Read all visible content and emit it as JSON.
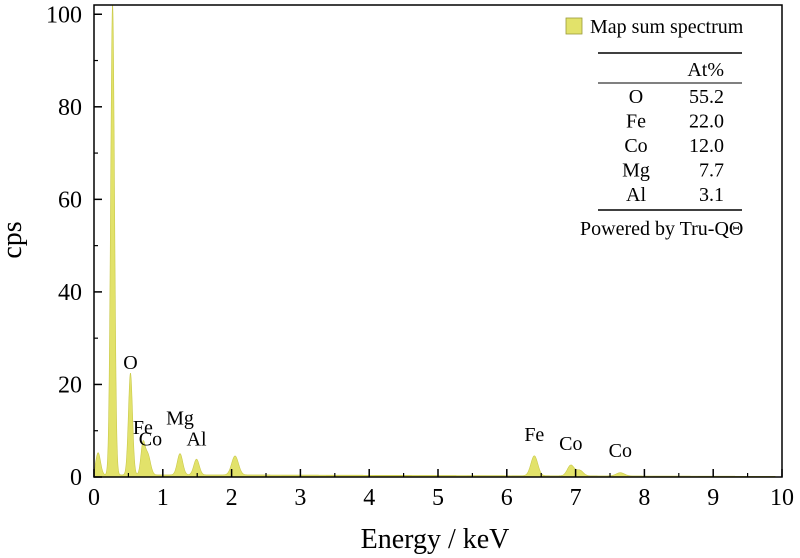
{
  "chart_data": {
    "type": "area",
    "xlabel": "Energy / keV",
    "ylabel": "cps",
    "xlim": [
      0,
      10
    ],
    "ylim": [
      0,
      102
    ],
    "x_ticks": [
      "0",
      "1",
      "2",
      "3",
      "4",
      "5",
      "6",
      "7",
      "8",
      "9",
      "10"
    ],
    "y_ticks": [
      "0",
      "20",
      "40",
      "60",
      "80",
      "100"
    ],
    "series": [
      {
        "name": "Map sum spectrum",
        "color": "#e2e26a",
        "peaks": [
          {
            "x": 0.06,
            "y": 4.8
          },
          {
            "x": 0.27,
            "y": 102
          },
          {
            "x": 0.53,
            "y": 22
          },
          {
            "x": 0.71,
            "y": 6.3
          },
          {
            "x": 0.78,
            "y": 4.5
          },
          {
            "x": 1.25,
            "y": 4.6
          },
          {
            "x": 1.49,
            "y": 3.4
          },
          {
            "x": 2.05,
            "y": 4.1
          },
          {
            "x": 6.4,
            "y": 4.3
          },
          {
            "x": 6.93,
            "y": 2.3
          },
          {
            "x": 7.06,
            "y": 1.2
          },
          {
            "x": 7.65,
            "y": 0.7
          }
        ]
      }
    ],
    "peak_labels": [
      {
        "text": "O",
        "x": 0.53,
        "y": 22
      },
      {
        "text": "Fe",
        "x": 0.71,
        "y": 8
      },
      {
        "text": "Co",
        "x": 0.82,
        "y": 5.5
      },
      {
        "text": "Mg",
        "x": 1.25,
        "y": 10
      },
      {
        "text": "Al",
        "x": 1.49,
        "y": 5.5
      },
      {
        "text": "Fe",
        "x": 6.4,
        "y": 6.5
      },
      {
        "text": "Co",
        "x": 6.93,
        "y": 4.5
      },
      {
        "text": "Co",
        "x": 7.65,
        "y": 3
      }
    ],
    "legend": {
      "label": "Map sum spectrum",
      "position": "top-right"
    },
    "composition_table": {
      "header": [
        "",
        "At%"
      ],
      "rows": [
        [
          "O",
          "55.2"
        ],
        [
          "Fe",
          "22.0"
        ],
        [
          "Co",
          "12.0"
        ],
        [
          "Mg",
          "7.7"
        ],
        [
          "Al",
          "3.1"
        ]
      ],
      "footer": "Powered by Tru-QΘ"
    },
    "grid": false
  }
}
